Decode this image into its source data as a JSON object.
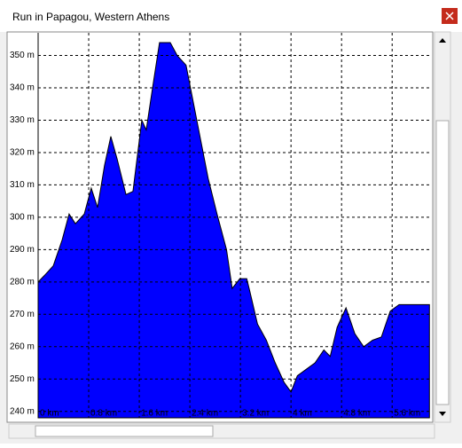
{
  "chart_data": {
    "type": "area",
    "title": "Run in Papagou, Western Athens",
    "color": "#0000ff",
    "grid": true,
    "x": [
      0,
      0.1,
      0.24,
      0.38,
      0.49,
      0.59,
      0.73,
      0.84,
      0.94,
      1.05,
      1.15,
      1.25,
      1.39,
      1.5,
      1.64,
      1.71,
      1.81,
      1.92,
      2.09,
      2.2,
      2.34,
      2.41,
      2.55,
      2.69,
      2.83,
      2.98,
      3.07,
      3.19,
      3.3,
      3.35,
      3.47,
      3.61,
      3.75,
      3.89,
      4.0,
      4.1,
      4.24,
      4.38,
      4.52,
      4.62,
      4.73,
      4.87,
      5.01,
      5.15,
      5.29,
      5.43,
      5.57,
      5.71,
      5.85,
      5.99,
      6.19
    ],
    "values": [
      280,
      282,
      285,
      293,
      301,
      298,
      301,
      309,
      303,
      316,
      325,
      318,
      307,
      308,
      330,
      327,
      340,
      354,
      354,
      350,
      347,
      340,
      326,
      312,
      301,
      290,
      278,
      281,
      281,
      277,
      267,
      262,
      255,
      249,
      246,
      251,
      253,
      255,
      259,
      257,
      266,
      272,
      264,
      260,
      262,
      263,
      271,
      273,
      273,
      273,
      273
    ],
    "xlim": [
      0,
      6.2
    ],
    "ylim": [
      238,
      357
    ],
    "xticks": [
      {
        "value": 0,
        "label": "0 km"
      },
      {
        "value": 0.8,
        "label": "0.8 km"
      },
      {
        "value": 1.6,
        "label": "1.6 km"
      },
      {
        "value": 2.4,
        "label": "2.4 km"
      },
      {
        "value": 3.2,
        "label": "3.2 km"
      },
      {
        "value": 4,
        "label": "4 km"
      },
      {
        "value": 4.8,
        "label": "4.8 km"
      },
      {
        "value": 5.6,
        "label": "5.6 km"
      }
    ],
    "yticks": [
      {
        "value": 240,
        "label": "240 m"
      },
      {
        "value": 250,
        "label": "250 m"
      },
      {
        "value": 260,
        "label": "260 m"
      },
      {
        "value": 270,
        "label": "270 m"
      },
      {
        "value": 280,
        "label": "280 m"
      },
      {
        "value": 290,
        "label": "290 m"
      },
      {
        "value": 300,
        "label": "300 m"
      },
      {
        "value": 310,
        "label": "310 m"
      },
      {
        "value": 320,
        "label": "320 m"
      },
      {
        "value": 330,
        "label": "330 m"
      },
      {
        "value": 340,
        "label": "340 m"
      },
      {
        "value": 350,
        "label": "350 m"
      }
    ]
  }
}
